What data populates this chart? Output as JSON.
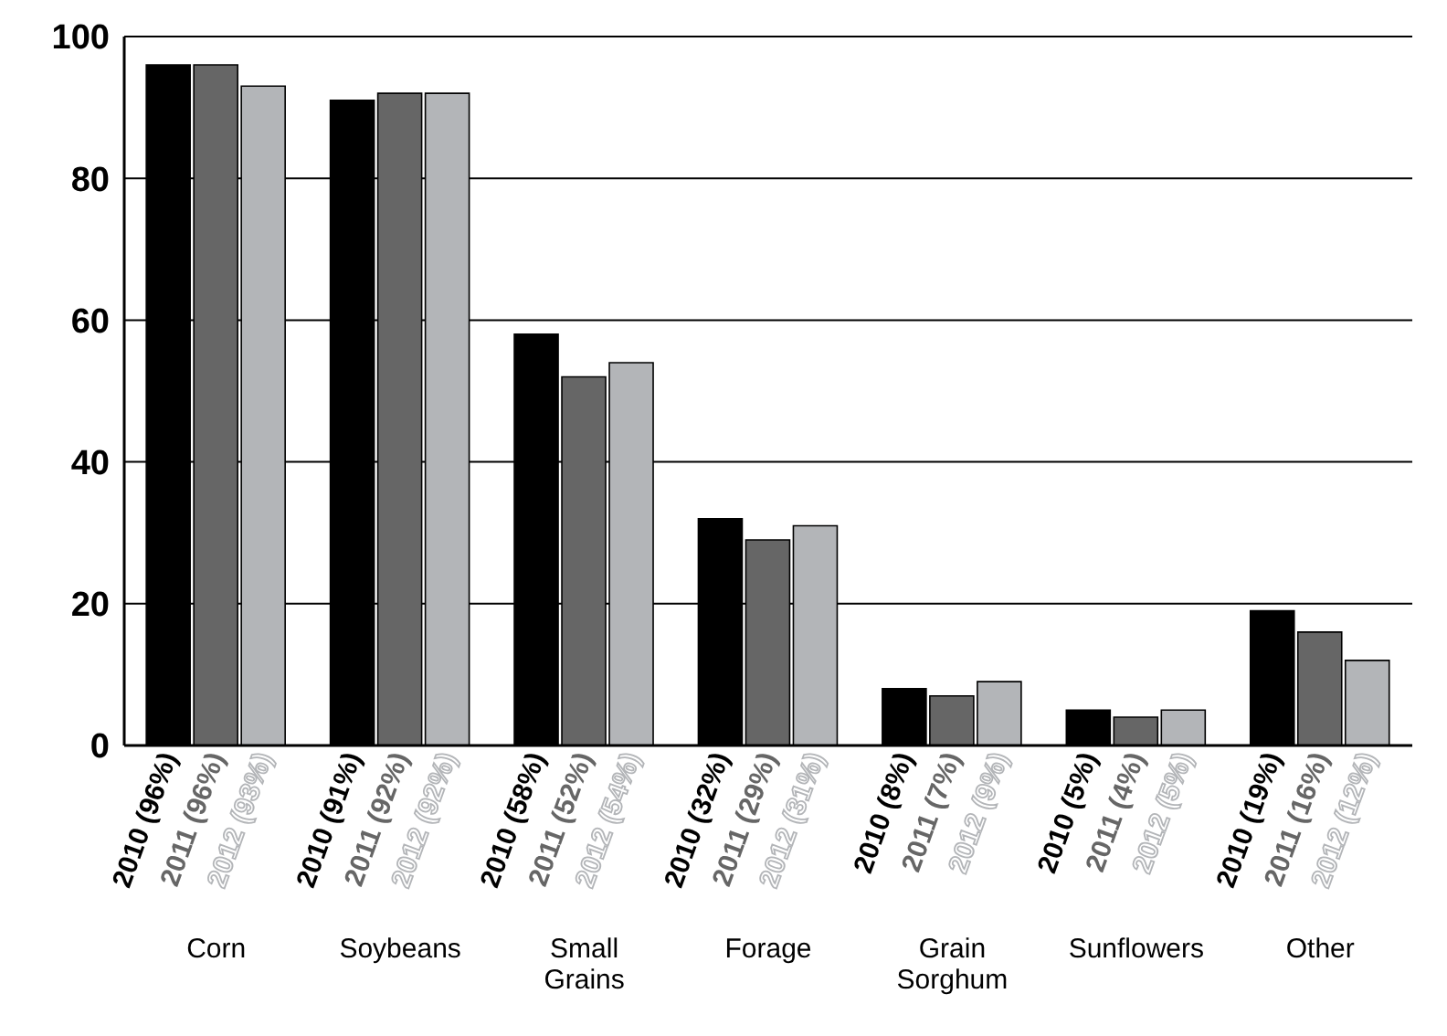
{
  "chart_data": {
    "type": "bar",
    "categories": [
      "Corn",
      "Soybeans",
      "Small Grains",
      "Forage",
      "Grain Sorghum",
      "Sunflowers",
      "Other"
    ],
    "series": [
      {
        "name": "2010",
        "color": "#000000",
        "values": [
          96,
          91,
          58,
          32,
          8,
          5,
          19
        ],
        "value_labels": [
          "(96%)",
          "(91%)",
          "(58%)",
          "(32%)",
          "(8%)",
          "(5%)",
          "(19%)"
        ]
      },
      {
        "name": "2011",
        "color": "#666666",
        "values": [
          96,
          92,
          52,
          29,
          7,
          4,
          16
        ],
        "value_labels": [
          "(96%)",
          "(92%)",
          "(52%)",
          "(29%)",
          "(7%)",
          "(4%)",
          "(16%)"
        ]
      },
      {
        "name": "2012",
        "color": "#b3b5b8",
        "values": [
          93,
          92,
          54,
          31,
          9,
          5,
          12
        ],
        "value_labels": [
          "(93%)",
          "(92%)",
          "(54%)",
          "(31%)",
          "(9%)",
          "(5%)",
          "(12%)"
        ]
      }
    ],
    "ylim": [
      0,
      100
    ],
    "yticks": [
      0,
      20,
      40,
      60,
      80,
      100
    ],
    "grid": "y",
    "legend": false
  }
}
